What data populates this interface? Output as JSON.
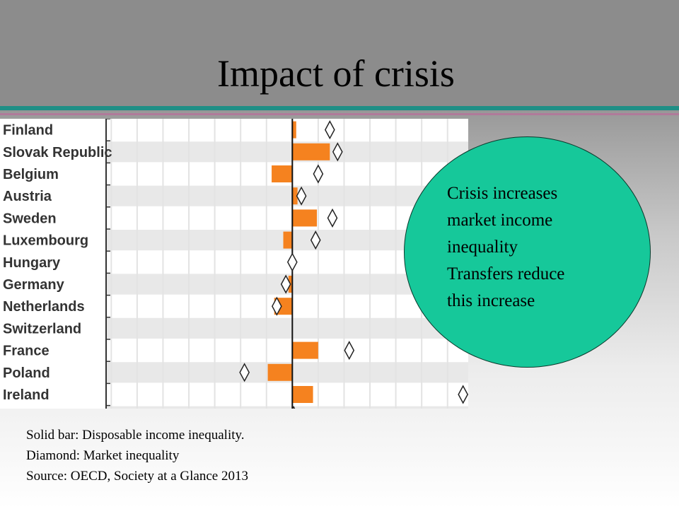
{
  "slide": {
    "title": "Impact of crisis",
    "callout": [
      "Crisis increases",
      "market income",
      "inequality",
      "Transfers reduce",
      "this increase"
    ],
    "notes": [
      "Solid bar:  Disposable income inequality.",
      "Diamond: Market inequality",
      "Source:  OECD, Society at a Glance 2013"
    ]
  },
  "chart_data": {
    "type": "bar",
    "orientation": "horizontal",
    "categories": [
      "Finland",
      "Slovak Republic",
      "Belgium",
      "Austria",
      "Sweden",
      "Luxembourg",
      "Hungary",
      "Germany",
      "Netherlands",
      "Switzerland",
      "France",
      "Poland",
      "Ireland"
    ],
    "series": [
      {
        "values": [
          0.15,
          1.45,
          -0.8,
          0.2,
          0.95,
          -0.35,
          0.0,
          -0.15,
          -0.7,
          0.0,
          1.0,
          -0.95,
          0.8
        ],
        "marker": "bar",
        "color": "#f5821f"
      },
      {
        "values": [
          1.45,
          1.75,
          1.0,
          0.35,
          1.55,
          0.9,
          0.0,
          -0.25,
          -0.6,
          null,
          2.2,
          -1.85,
          6.6
        ],
        "marker": "diamond",
        "color": "#ffffff"
      }
    ],
    "xlim": [
      -7.2,
      6.8
    ],
    "grid": true,
    "bar_color": "#f5821f",
    "grid_color": "#e3e3e3",
    "band_color": "#e8e8e8",
    "bubble_color": "#16c89a"
  }
}
